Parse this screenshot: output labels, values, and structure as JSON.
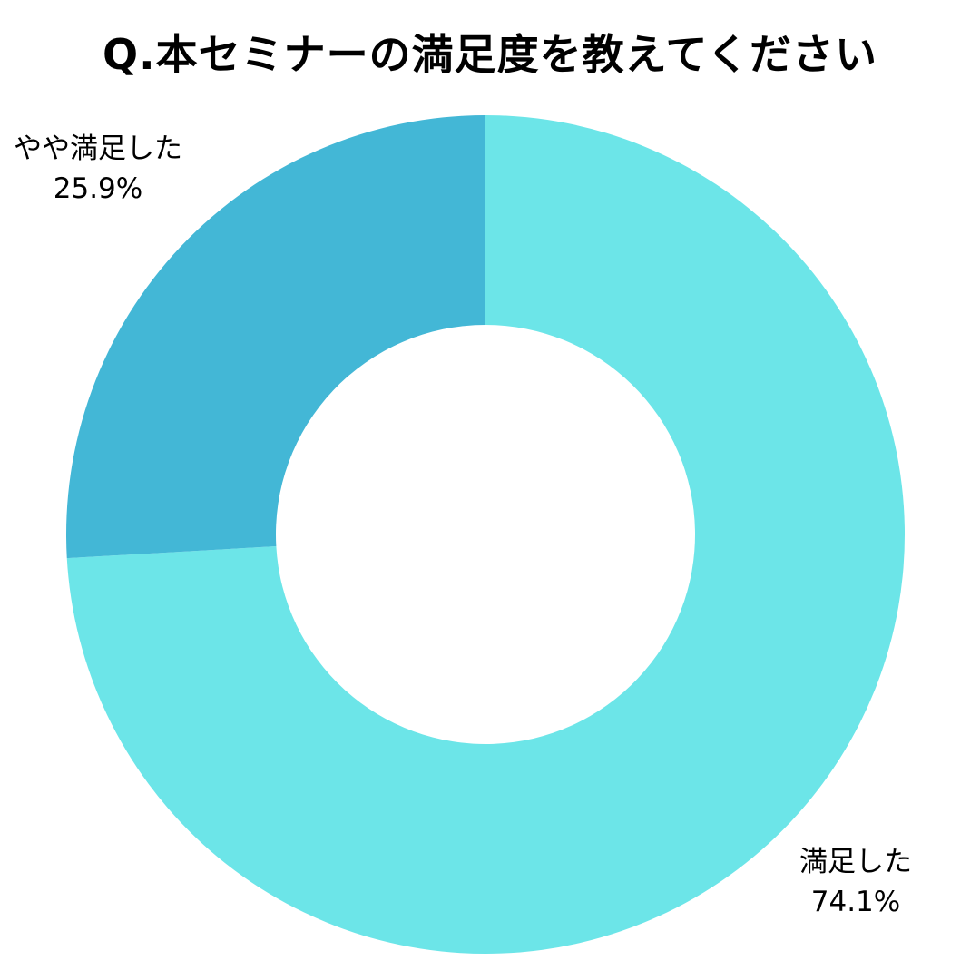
{
  "chart_data": {
    "type": "pie",
    "title": "Q.本セミナーの満足度を教えてください",
    "donut": true,
    "start_angle_deg": 0,
    "direction": "clockwise",
    "slices": [
      {
        "label": "満足した",
        "value": 74.1,
        "value_label": "74.1%",
        "color": "#6ce5e8"
      },
      {
        "label": "やや満足した",
        "value": 25.9,
        "value_label": "25.9%",
        "color": "#43b7d6"
      }
    ]
  }
}
